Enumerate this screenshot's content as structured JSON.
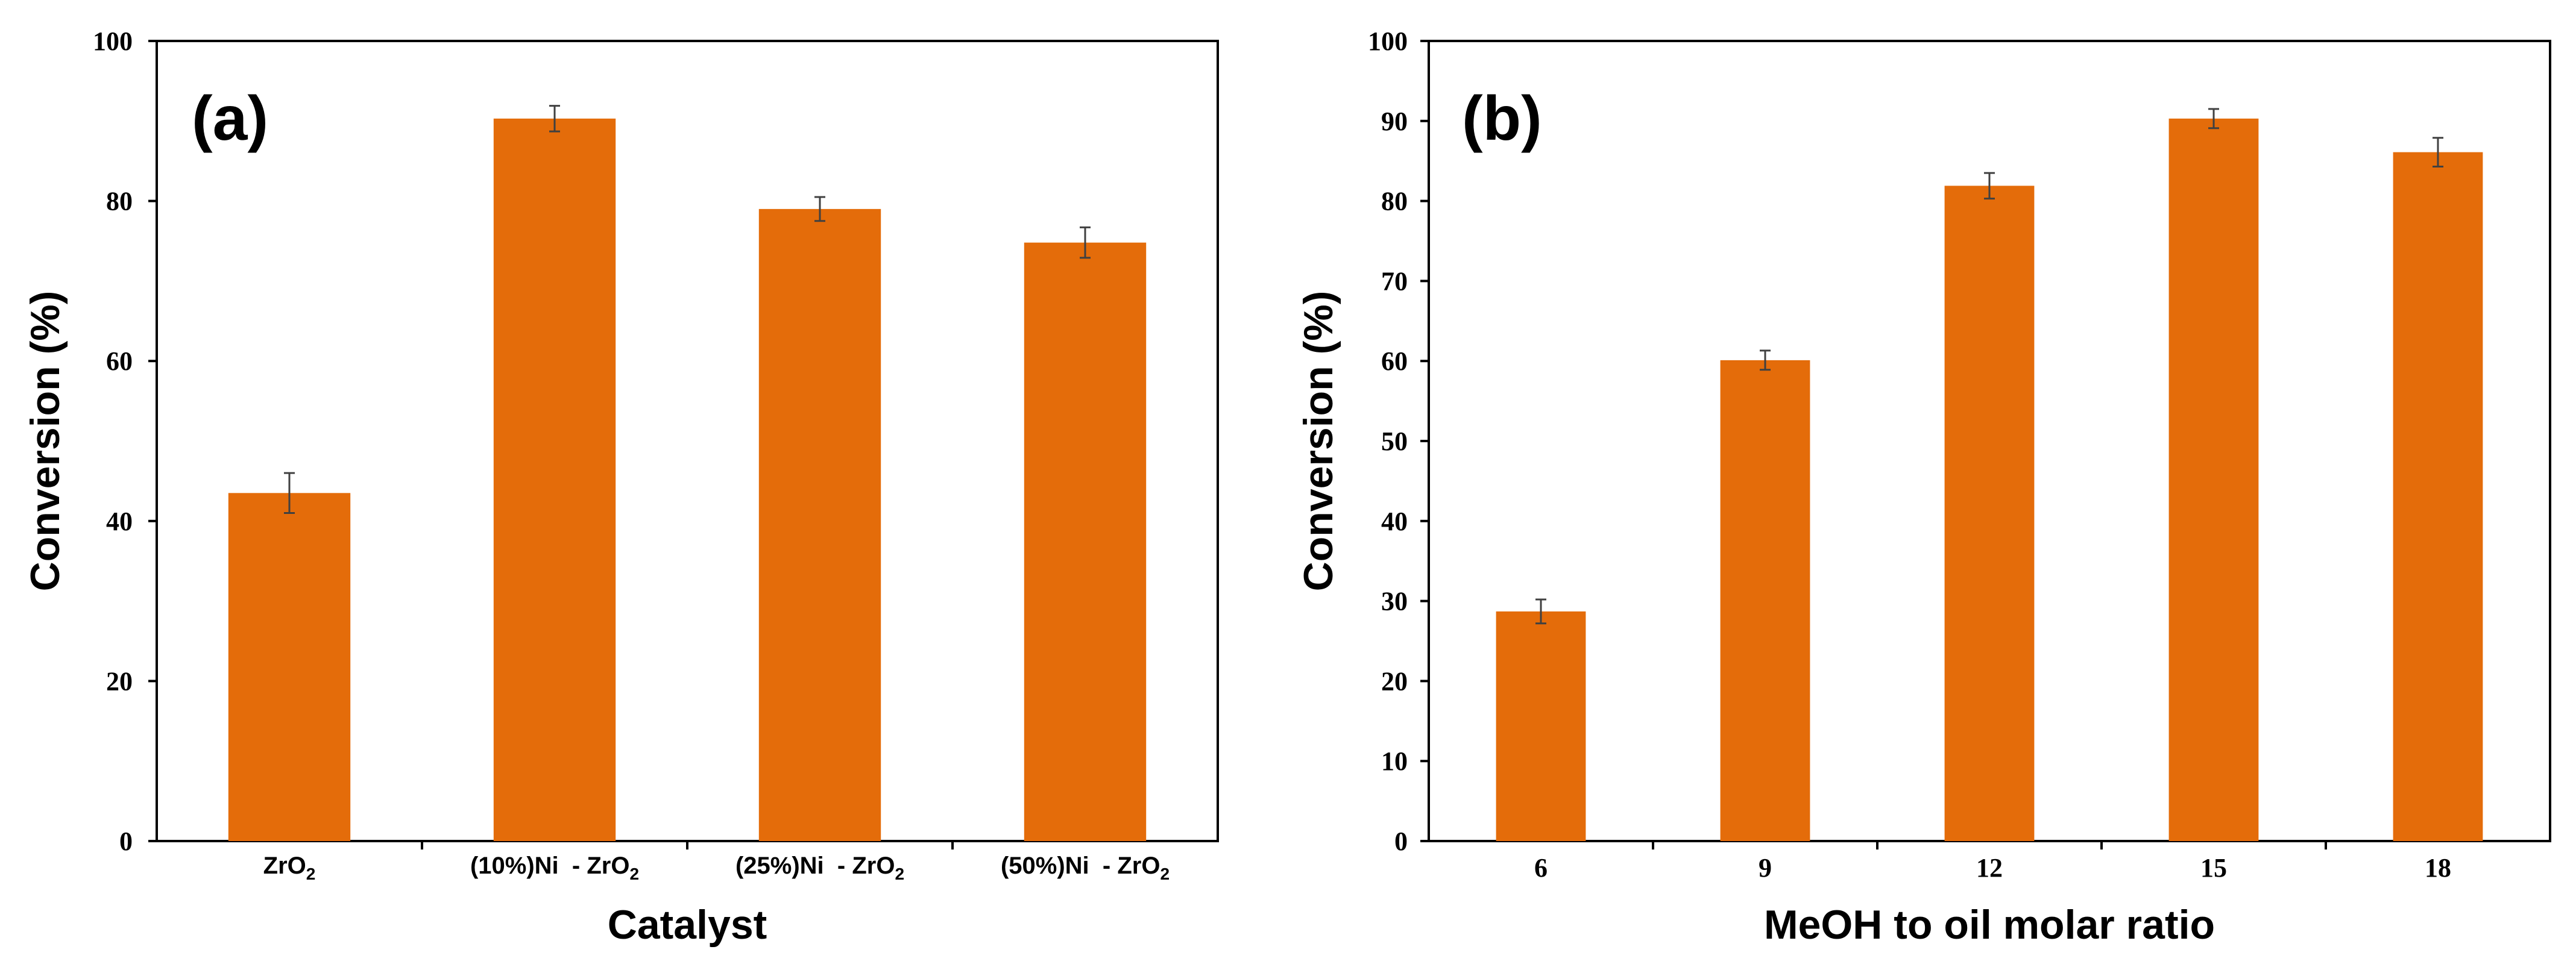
{
  "figure": {
    "colors": {
      "bar": "#E46C0A",
      "error_bar": "#404040",
      "axis": "#000000"
    }
  },
  "chart_data": [
    {
      "type": "bar",
      "panel_label": "(a)",
      "categories": [
        {
          "base": "ZrO",
          "sub": "2"
        },
        {
          "base": "(10%)Ni  - ZrO",
          "sub": "2"
        },
        {
          "base": "(25%)Ni  - ZrO",
          "sub": "2"
        },
        {
          "base": "(50%)Ni  - ZrO",
          "sub": "2"
        }
      ],
      "values": [
        43.5,
        90.3,
        79.0,
        74.8
      ],
      "errors": [
        2.5,
        1.6,
        1.5,
        1.9
      ],
      "xlabel": "Catalyst",
      "ylabel": "Conversion (%)",
      "ylim": [
        0,
        100
      ],
      "yticks": [
        0,
        20,
        40,
        60,
        80,
        100
      ],
      "ytick_labels": [
        "0",
        "20",
        "40",
        "60",
        "80",
        "100"
      ]
    },
    {
      "type": "bar",
      "panel_label": "(b)",
      "categories": [
        "6",
        "9",
        "12",
        "15",
        "18"
      ],
      "values": [
        28.7,
        60.1,
        81.9,
        90.3,
        86.1
      ],
      "errors": [
        1.5,
        1.2,
        1.6,
        1.2,
        1.8
      ],
      "xlabel": "MeOH to oil molar ratio",
      "ylabel": "Conversion (%)",
      "ylim": [
        0,
        100
      ],
      "yticks": [
        0,
        10,
        20,
        30,
        40,
        50,
        60,
        70,
        80,
        90,
        100
      ],
      "ytick_labels": [
        "0",
        "10",
        "20",
        "30",
        "40",
        "50",
        "60",
        "70",
        "80",
        "90",
        "100"
      ]
    }
  ]
}
